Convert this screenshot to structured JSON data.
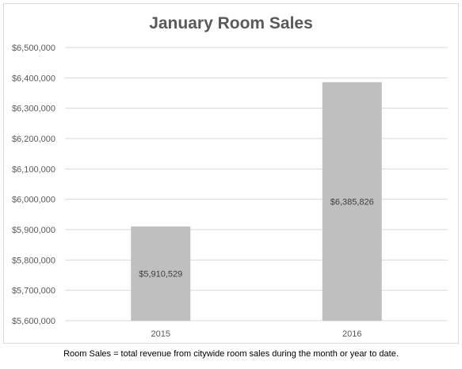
{
  "chart_data": {
    "type": "bar",
    "title": "January Room Sales",
    "categories": [
      "2015",
      "2016"
    ],
    "values": [
      5910529,
      6385826
    ],
    "data_labels": [
      "$5,910,529",
      "$6,385,826"
    ],
    "ylim": [
      5600000,
      6500000
    ],
    "yticks": [
      5600000,
      5700000,
      5800000,
      5900000,
      6000000,
      6100000,
      6200000,
      6300000,
      6400000,
      6500000
    ],
    "ytick_labels": [
      "$5,600,000",
      "$5,700,000",
      "$5,800,000",
      "$5,900,000",
      "$6,000,000",
      "$6,100,000",
      "$6,200,000",
      "$6,300,000",
      "$6,400,000",
      "$6,500,000"
    ],
    "grid": true,
    "bar_color": "#bfbfbf",
    "grid_color": "#d9d9d9"
  },
  "footnote": "Room Sales = total revenue from citywide room sales during the month or year to date."
}
